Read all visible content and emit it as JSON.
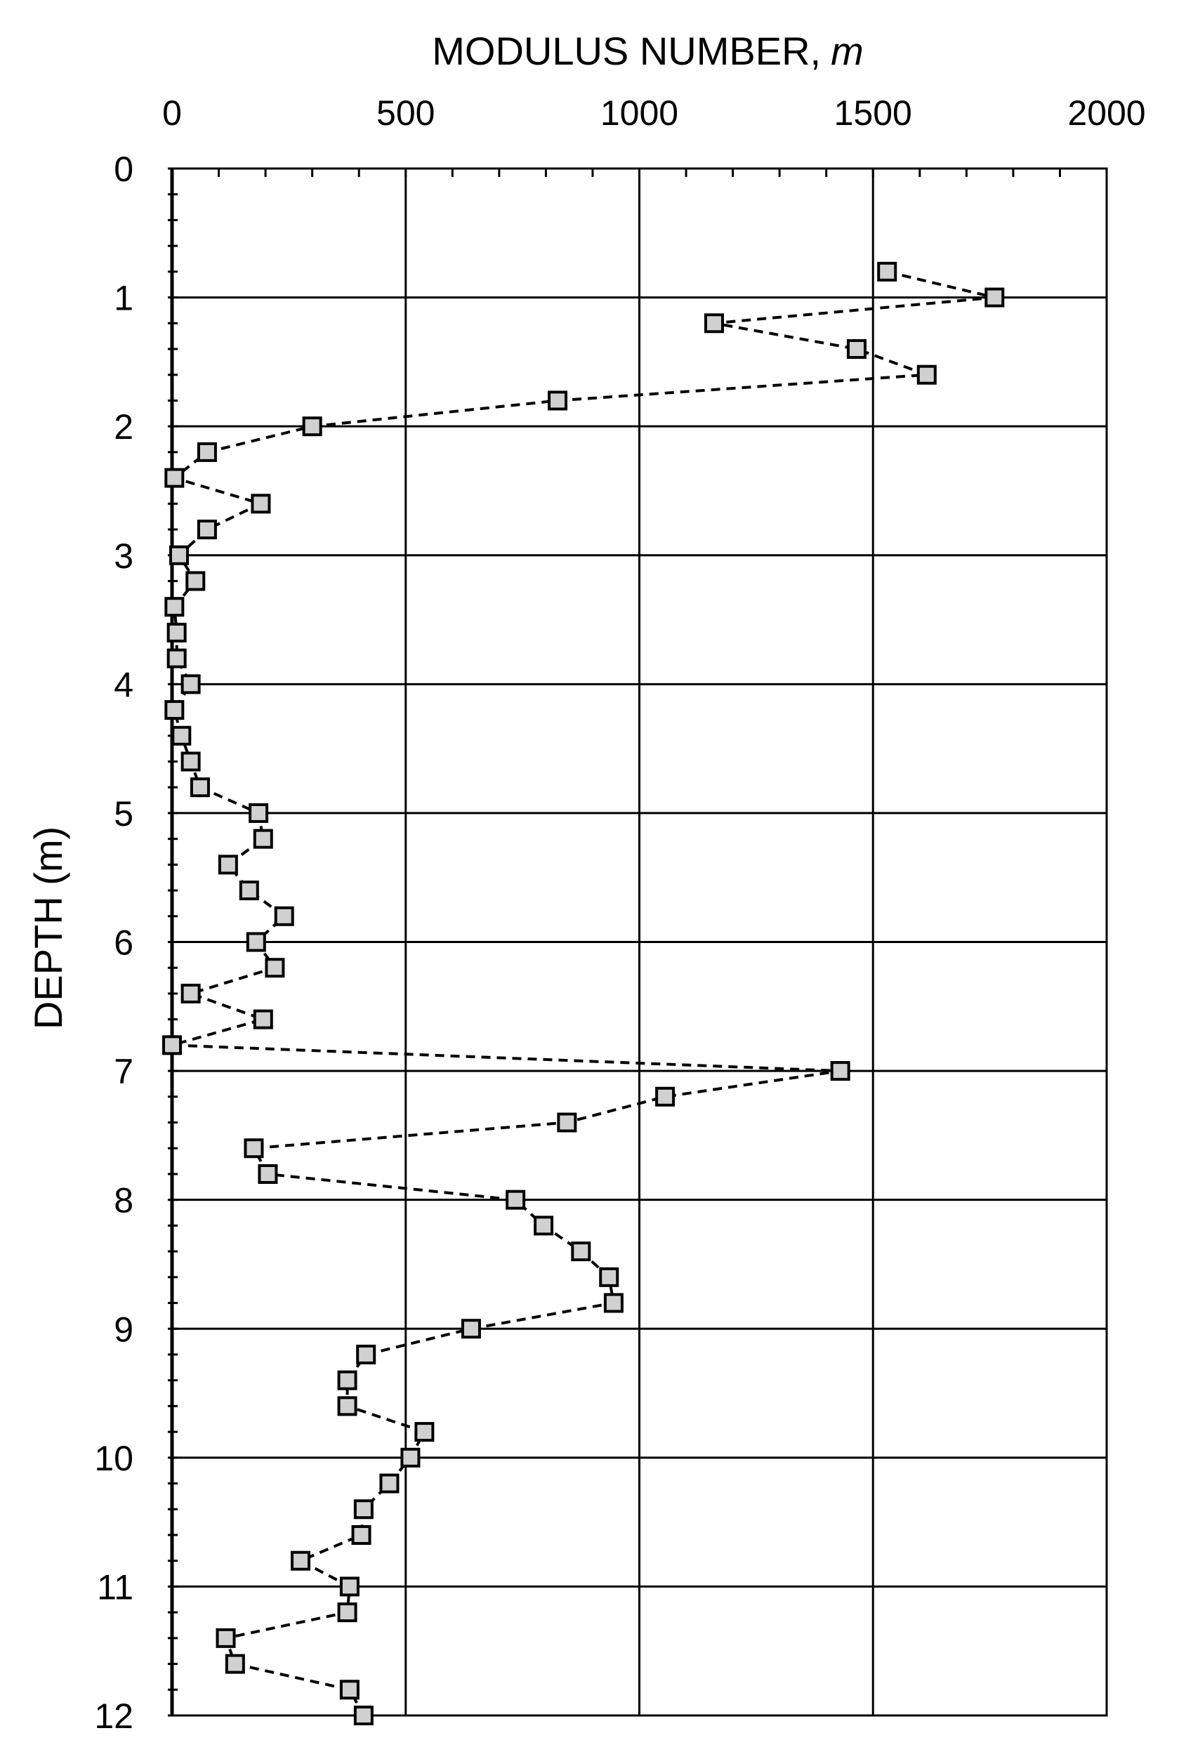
{
  "chart_data": {
    "type": "scatter",
    "title": "",
    "xlabel": "MODULUS NUMBER,",
    "xlabel_var": "m",
    "ylabel": "DEPTH (m)",
    "xlim": [
      0,
      2000
    ],
    "ylim": [
      0,
      12
    ],
    "y_inverted": true,
    "x_axis_position": "top",
    "x_ticks": [
      0,
      500,
      1000,
      1500,
      2000
    ],
    "y_ticks": [
      0,
      1,
      2,
      3,
      4,
      5,
      6,
      7,
      8,
      9,
      10,
      11,
      12
    ],
    "grid": true,
    "legend": "none",
    "line_style": "dashed",
    "marker": "square",
    "colors": {
      "marker_fill": "#d0d0d0",
      "marker_edge": "#000000",
      "line": "#000000",
      "grid": "#000000"
    },
    "series": [
      {
        "x": [
          1530,
          1760,
          1160,
          1465,
          1615,
          825,
          300,
          75,
          5,
          190,
          75,
          15,
          50,
          5,
          10,
          10,
          40,
          5,
          20,
          40,
          60,
          185,
          195,
          120,
          165,
          240,
          180,
          220,
          40,
          195,
          0,
          1430,
          1055,
          845,
          175,
          205,
          735,
          795,
          875,
          935,
          945,
          640,
          415,
          375,
          375,
          540,
          510,
          465,
          410,
          405,
          275,
          380,
          375,
          115,
          135,
          380,
          410
        ],
        "y": [
          0.8,
          1.0,
          1.2,
          1.4,
          1.6,
          1.8,
          2.0,
          2.2,
          2.4,
          2.6,
          2.8,
          3.0,
          3.2,
          3.4,
          3.6,
          3.8,
          4.0,
          4.2,
          4.4,
          4.6,
          4.8,
          5.0,
          5.2,
          5.4,
          5.6,
          5.8,
          6.0,
          6.2,
          6.4,
          6.6,
          6.8,
          7.0,
          7.2,
          7.4,
          7.6,
          7.8,
          8.0,
          8.2,
          8.4,
          8.6,
          8.8,
          9.0,
          9.2,
          9.4,
          9.6,
          9.8,
          10.0,
          10.2,
          10.4,
          10.6,
          10.8,
          11.0,
          11.2,
          11.4,
          11.6,
          11.8,
          12.0
        ]
      }
    ]
  }
}
